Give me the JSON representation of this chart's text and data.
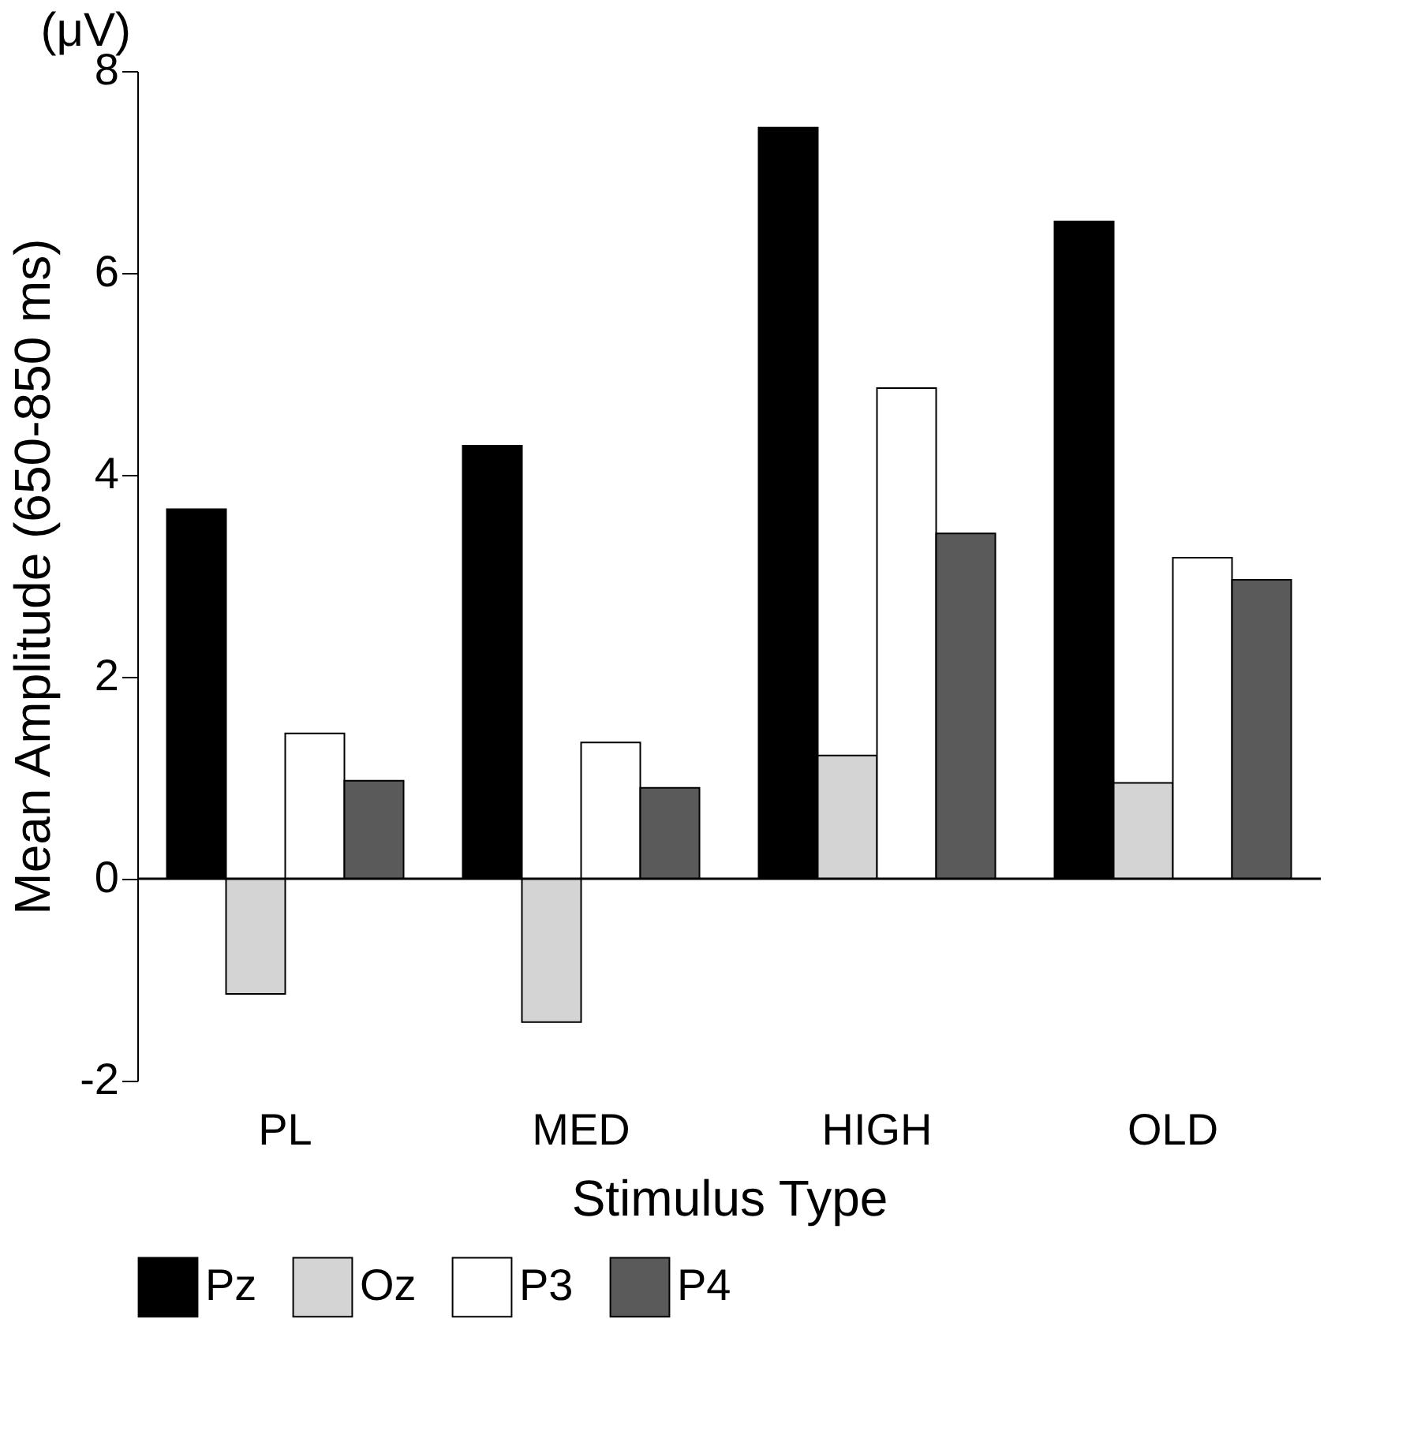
{
  "chart_data": {
    "type": "bar",
    "xlabel": "Stimulus Type",
    "ylabel": "Mean Amplitude (650-850 ms)",
    "annotations": [
      "(μV)"
    ],
    "categories": [
      "PL",
      "MED",
      "HIGH",
      "OLD"
    ],
    "series": [
      {
        "name": "Pz",
        "color": "#000000",
        "values": [
          3.66,
          4.29,
          7.44,
          6.51
        ]
      },
      {
        "name": "Oz",
        "color": "#d4d4d4",
        "values": [
          -1.14,
          -1.42,
          1.22,
          0.95
        ]
      },
      {
        "name": "P3",
        "color": "#ffffff",
        "values": [
          1.44,
          1.35,
          4.86,
          3.18
        ]
      },
      {
        "name": "P4",
        "color": "#5a5a5a",
        "values": [
          0.97,
          0.9,
          3.42,
          2.96
        ]
      }
    ],
    "ylim": [
      -2,
      8
    ],
    "yticks": [
      -2,
      0,
      2,
      4,
      6,
      8
    ],
    "ref_lines": [
      {
        "axis": "y",
        "value": 0
      }
    ],
    "grid": false,
    "legend": "bottom"
  }
}
